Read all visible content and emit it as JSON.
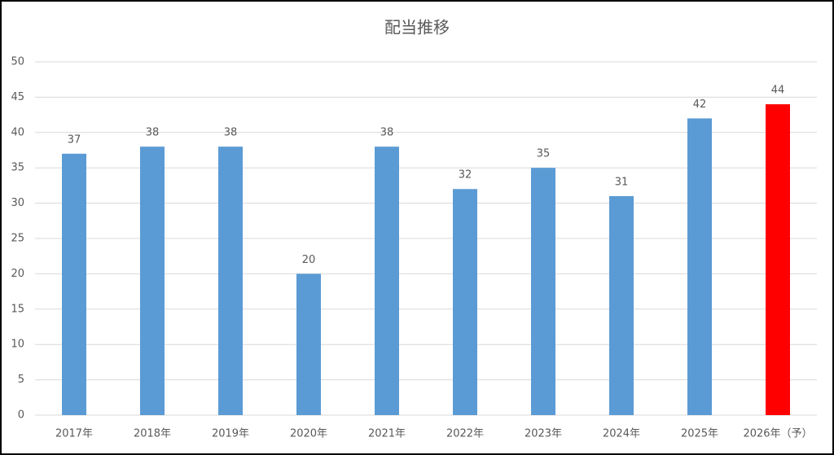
{
  "chart_data": {
    "type": "bar",
    "title": "配当推移",
    "categories": [
      "2017年",
      "2018年",
      "2019年",
      "2020年",
      "2021年",
      "2022年",
      "2023年",
      "2024年",
      "2025年",
      "2026年（予）"
    ],
    "values": [
      37,
      38,
      38,
      20,
      38,
      32,
      35,
      31,
      42,
      44
    ],
    "colors": [
      "#5b9bd5",
      "#5b9bd5",
      "#5b9bd5",
      "#5b9bd5",
      "#5b9bd5",
      "#5b9bd5",
      "#5b9bd5",
      "#5b9bd5",
      "#5b9bd5",
      "#ff0000"
    ],
    "ylim": [
      0,
      50
    ],
    "yticks": [
      0,
      5,
      10,
      15,
      20,
      25,
      30,
      35,
      40,
      45,
      50
    ],
    "grid": true
  }
}
